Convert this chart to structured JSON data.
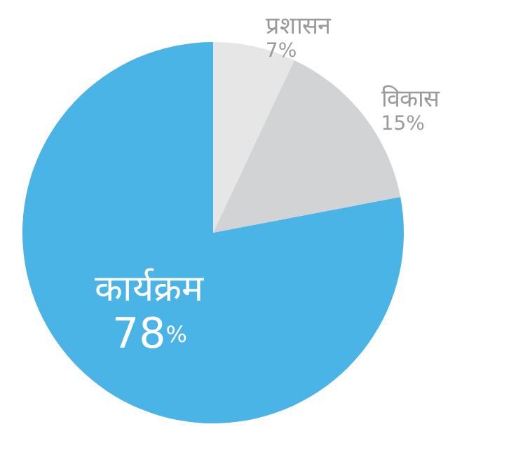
{
  "chart_data": {
    "type": "pie",
    "categories": [
      "प्रशासन",
      "विकास",
      "कार्यक्रम"
    ],
    "values": [
      7,
      15,
      78
    ],
    "value_labels": [
      "7%",
      "15%",
      "78%"
    ],
    "colors": [
      "#e6e6e7",
      "#d2d3d5",
      "#4ab4e6"
    ]
  }
}
